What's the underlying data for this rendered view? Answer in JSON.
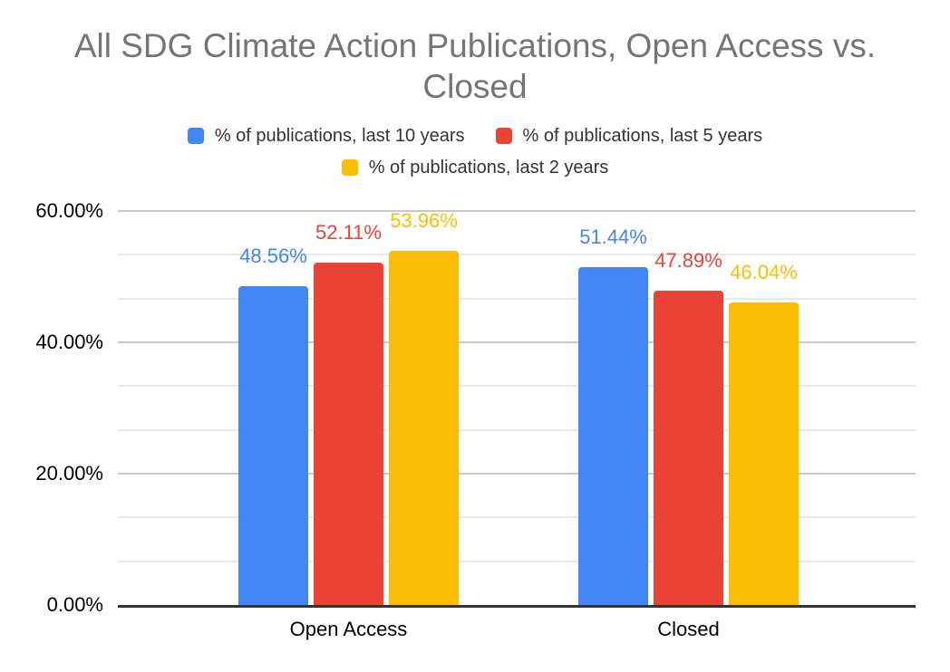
{
  "chart_data": {
    "type": "bar",
    "title": "All SDG Climate Action Publications, Open Access vs. Closed",
    "title_color": "#757575",
    "categories": [
      "Open Access",
      "Closed"
    ],
    "series": [
      {
        "name": "% of publications, last 10 years",
        "color": "#4285F4",
        "values": [
          48.56,
          51.44
        ],
        "data_labels": [
          "48.56%",
          "51.44%"
        ]
      },
      {
        "name": "% of publications, last 5 years",
        "color": "#EA4335",
        "values": [
          52.11,
          47.89
        ],
        "data_labels": [
          "52.11%",
          "47.89%"
        ]
      },
      {
        "name": "% of publications, last 2 years",
        "color": "#FBBC04",
        "values": [
          53.96,
          46.04
        ],
        "data_labels": [
          "53.96%",
          "46.04%"
        ]
      }
    ],
    "xlabel": "",
    "ylabel": "",
    "ylim": [
      0,
      60
    ],
    "y_axis": {
      "ticks": [
        {
          "label": "0.00%",
          "value": 0
        },
        {
          "label": "20.00%",
          "value": 20
        },
        {
          "label": "40.00%",
          "value": 40
        },
        {
          "label": "60.00%",
          "value": 60
        }
      ],
      "minor_gridline_step_pct": 6.6667
    },
    "grid": true,
    "legend_position": "top",
    "colors": {
      "axis_line": "#333333",
      "major_gridline": "#c8c8c8",
      "minor_gridline": "#e8e8e8",
      "axis_text": "#000000",
      "legend_text": "#333333",
      "background": "#ffffff"
    }
  }
}
